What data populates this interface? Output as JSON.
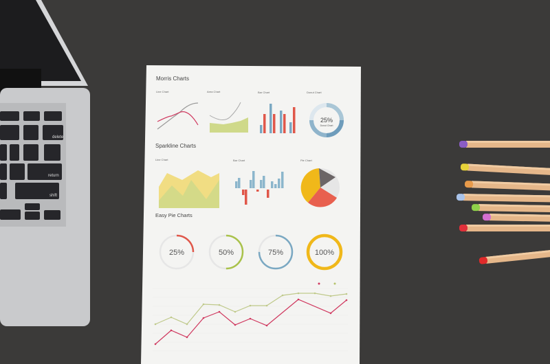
{
  "colors": {
    "desk": "#3b3a39",
    "paper": "#f4f4f2",
    "laptop": "#c9cacc",
    "pink": "#d0385f",
    "olive": "#b5c36b",
    "blue": "#7aa8c2",
    "red": "#e0574a",
    "yellow": "#f0b81a",
    "green": "#a9c24a",
    "gray": "#6b6566"
  },
  "keyboard": {
    "delete": "delete",
    "return": "return",
    "shift": "shift"
  },
  "paper": {
    "morris_title": "Morris Charts",
    "morris": {
      "line": "Line Chart",
      "area": "Area Chart",
      "bar": "Bar Chart",
      "donut": "Donut Chart",
      "donut_value": "25%",
      "donut_label": "Donut Chart"
    },
    "sparkline_title": "Sparkline Charts",
    "sparkline": {
      "line": "Line Chart",
      "bar": "Bar Chart",
      "pie": "Pie Chart"
    },
    "easy_pie_title": "Easy Pie Charts",
    "easy_pie": [
      {
        "label": "25%",
        "value": 25,
        "color": "#e0574a"
      },
      {
        "label": "50%",
        "value": 50,
        "color": "#a9c24a"
      },
      {
        "label": "75%",
        "value": 75,
        "color": "#7aa8c2"
      },
      {
        "label": "100%",
        "value": 100,
        "color": "#f0b81a"
      }
    ]
  },
  "pencils": [
    {
      "tip": "#8a5cc4"
    },
    {
      "tip": "#e6d23a"
    },
    {
      "tip": "#e89a4a"
    },
    {
      "tip": "#a9c3ea"
    },
    {
      "tip": "#8fd14a"
    },
    {
      "tip": "#d46fd0"
    },
    {
      "tip": "#e0303a"
    },
    {
      "tip": "#e02a2a"
    }
  ]
}
